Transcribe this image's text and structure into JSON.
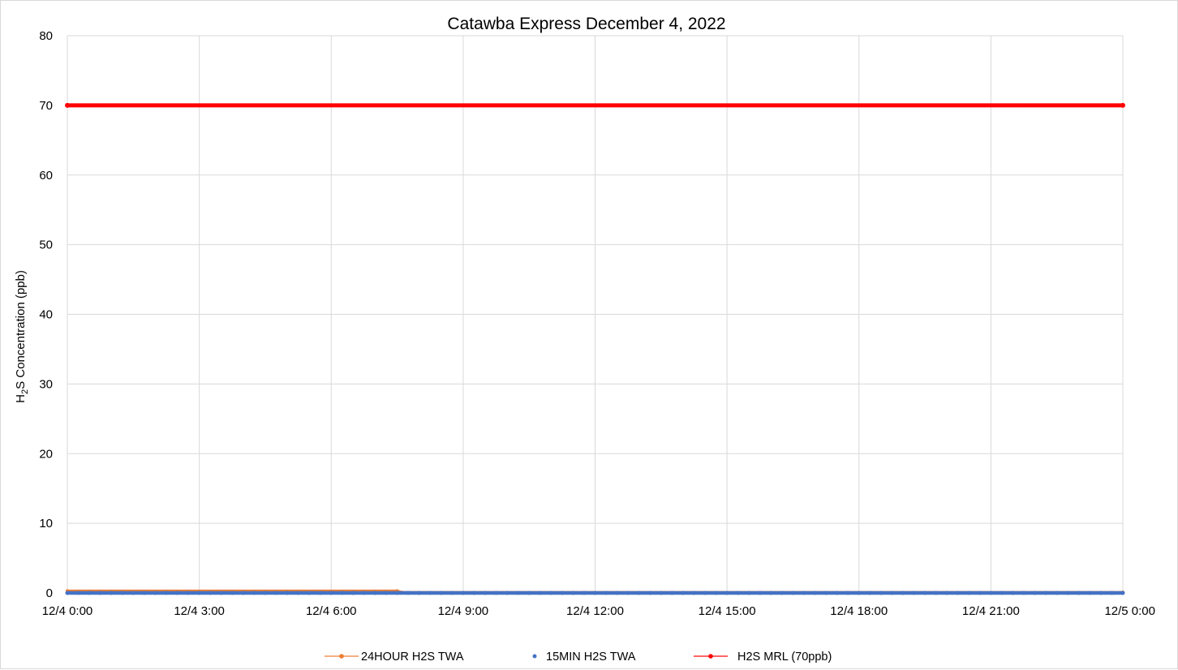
{
  "chart_data": {
    "type": "line",
    "title": "Catawba Express December 4, 2022",
    "xlabel": "",
    "ylabel": "H2S Concentration (ppb)",
    "ylabel_parts": {
      "main": "H",
      "subscript": "2",
      "rest": "S Concentration (ppb)"
    },
    "x_tick_labels": [
      "12/4 0:00",
      "12/4 3:00",
      "12/4 6:00",
      "12/4 9:00",
      "12/4 12:00",
      "12/4 15:00",
      "12/4 18:00",
      "12/4 21:00",
      "12/5 0:00"
    ],
    "x_range_hours": [
      0,
      24
    ],
    "ylim": [
      0,
      80
    ],
    "y_ticks": [
      0,
      10,
      20,
      30,
      40,
      50,
      60,
      70,
      80
    ],
    "grid": true,
    "legend_position": "bottom",
    "series": [
      {
        "name": "24HOUR H2S TWA",
        "color": "#ED7D31",
        "marker": "circle",
        "style": "line-with-markers",
        "x_hours": [
          0,
          7.5,
          7.6,
          24
        ],
        "values": [
          0.3,
          0.3,
          0.1,
          0.1
        ]
      },
      {
        "name": "15MIN H2S TWA",
        "color": "#4472C4",
        "marker": "circle",
        "style": "markers",
        "x_hours": [
          0,
          24
        ],
        "values": [
          0,
          0
        ]
      },
      {
        "name": "H2S MRL (70ppb)",
        "color": "#FF0000",
        "marker": "circle",
        "style": "line-with-markers",
        "x_hours": [
          0,
          24
        ],
        "values": [
          70,
          70
        ]
      }
    ]
  }
}
